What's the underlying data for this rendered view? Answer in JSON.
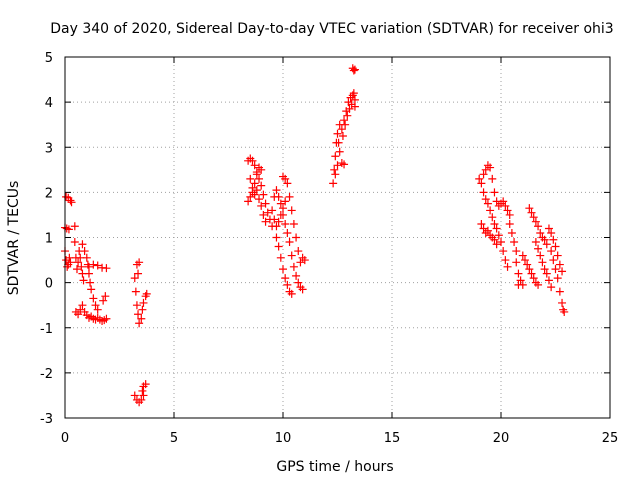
{
  "chart_data": {
    "type": "scatter",
    "title": "Day 340 of 2020, Sidereal Day-to-day VTEC variation (SDTVAR) for receiver ohi3",
    "xlabel": "GPS time / hours",
    "ylabel": "SDTVAR / TECUs",
    "xlim": [
      0,
      25
    ],
    "ylim": [
      -3,
      5
    ],
    "x_ticks": [
      "0",
      "5",
      "10",
      "15",
      "20",
      "25"
    ],
    "y_ticks": [
      "-3",
      "-2",
      "-1",
      "0",
      "1",
      "2",
      "3",
      "4",
      "5"
    ],
    "grid": true,
    "marker": "+",
    "marker_color": "#ff0000",
    "series": [
      {
        "name": "SDTVAR",
        "points": [
          [
            0.05,
            1.9
          ],
          [
            0.15,
            1.88
          ],
          [
            0.25,
            1.82
          ],
          [
            0.3,
            1.78
          ],
          [
            0.0,
            1.22
          ],
          [
            0.08,
            1.2
          ],
          [
            0.18,
            1.18
          ],
          [
            0.0,
            0.7
          ],
          [
            0.05,
            0.5
          ],
          [
            0.1,
            0.35
          ],
          [
            0.15,
            0.4
          ],
          [
            0.2,
            0.55
          ],
          [
            0.25,
            0.45
          ],
          [
            0.45,
            1.25
          ],
          [
            0.45,
            0.9
          ],
          [
            0.5,
            0.55
          ],
          [
            0.55,
            0.3
          ],
          [
            0.6,
            0.45
          ],
          [
            0.65,
            0.7
          ],
          [
            0.7,
            0.55
          ],
          [
            0.75,
            0.35
          ],
          [
            0.8,
            0.2
          ],
          [
            0.85,
            0.05
          ],
          [
            0.5,
            -0.65
          ],
          [
            0.6,
            -0.7
          ],
          [
            0.7,
            -0.6
          ],
          [
            0.8,
            -0.5
          ],
          [
            0.9,
            -0.65
          ],
          [
            1.0,
            -0.72
          ],
          [
            1.1,
            -0.78
          ],
          [
            1.2,
            -0.75
          ],
          [
            1.3,
            -0.8
          ],
          [
            1.4,
            -0.82
          ],
          [
            1.5,
            -0.78
          ],
          [
            1.6,
            -0.82
          ],
          [
            1.7,
            -0.85
          ],
          [
            1.8,
            -0.83
          ],
          [
            1.9,
            -0.8
          ],
          [
            0.8,
            0.85
          ],
          [
            0.9,
            0.7
          ],
          [
            1.0,
            0.55
          ],
          [
            1.05,
            0.4
          ],
          [
            1.1,
            0.2
          ],
          [
            1.15,
            0.0
          ],
          [
            1.2,
            -0.15
          ],
          [
            1.3,
            -0.35
          ],
          [
            1.4,
            -0.5
          ],
          [
            1.5,
            -0.6
          ],
          [
            1.1,
            0.35
          ],
          [
            1.3,
            0.4
          ],
          [
            1.5,
            0.38
          ],
          [
            1.7,
            0.33
          ],
          [
            1.9,
            0.32
          ],
          [
            1.75,
            -0.4
          ],
          [
            1.85,
            -0.3
          ],
          [
            3.2,
            -2.5
          ],
          [
            3.3,
            -2.6
          ],
          [
            3.4,
            -2.65
          ],
          [
            3.5,
            -2.6
          ],
          [
            3.6,
            -2.5
          ],
          [
            3.55,
            -2.4
          ],
          [
            3.6,
            -2.3
          ],
          [
            3.7,
            -2.25
          ],
          [
            3.2,
            0.1
          ],
          [
            3.25,
            -0.2
          ],
          [
            3.3,
            -0.5
          ],
          [
            3.35,
            -0.7
          ],
          [
            3.4,
            -0.9
          ],
          [
            3.3,
            0.4
          ],
          [
            3.4,
            0.45
          ],
          [
            3.35,
            0.2
          ],
          [
            3.5,
            -0.8
          ],
          [
            3.55,
            -0.6
          ],
          [
            3.6,
            -0.45
          ],
          [
            3.7,
            -0.3
          ],
          [
            3.75,
            -0.25
          ],
          [
            8.4,
            2.7
          ],
          [
            8.5,
            2.75
          ],
          [
            8.6,
            2.7
          ],
          [
            8.7,
            2.6
          ],
          [
            8.8,
            2.45
          ],
          [
            8.9,
            2.3
          ],
          [
            9.0,
            2.15
          ],
          [
            9.1,
            1.95
          ],
          [
            9.2,
            1.75
          ],
          [
            9.3,
            1.55
          ],
          [
            9.4,
            1.4
          ],
          [
            9.5,
            1.25
          ],
          [
            8.5,
            2.3
          ],
          [
            8.6,
            2.1
          ],
          [
            8.7,
            1.95
          ],
          [
            8.8,
            2.05
          ],
          [
            8.9,
            1.85
          ],
          [
            9.0,
            1.7
          ],
          [
            9.1,
            1.5
          ],
          [
            9.2,
            1.35
          ],
          [
            8.4,
            1.8
          ],
          [
            8.5,
            1.9
          ],
          [
            8.6,
            2.0
          ],
          [
            8.7,
            2.2
          ],
          [
            8.8,
            2.4
          ],
          [
            8.9,
            2.55
          ],
          [
            9.0,
            2.5
          ],
          [
            9.6,
            1.9
          ],
          [
            9.7,
            2.05
          ],
          [
            9.8,
            1.9
          ],
          [
            9.9,
            1.75
          ],
          [
            10.0,
            1.5
          ],
          [
            10.1,
            1.3
          ],
          [
            10.2,
            1.1
          ],
          [
            10.3,
            0.9
          ],
          [
            10.4,
            0.6
          ],
          [
            10.5,
            0.35
          ],
          [
            10.6,
            0.15
          ],
          [
            10.7,
            0.0
          ],
          [
            10.8,
            -0.1
          ],
          [
            10.9,
            -0.15
          ],
          [
            9.5,
            1.6
          ],
          [
            9.6,
            1.4
          ],
          [
            9.7,
            1.25
          ],
          [
            9.8,
            1.35
          ],
          [
            9.9,
            1.5
          ],
          [
            10.0,
            1.65
          ],
          [
            10.1,
            1.8
          ],
          [
            9.7,
            1.0
          ],
          [
            9.8,
            0.8
          ],
          [
            9.9,
            0.55
          ],
          [
            10.0,
            0.3
          ],
          [
            10.1,
            0.1
          ],
          [
            10.2,
            -0.05
          ],
          [
            10.3,
            -0.2
          ],
          [
            10.4,
            -0.25
          ],
          [
            10.0,
            2.35
          ],
          [
            10.1,
            2.3
          ],
          [
            10.2,
            2.2
          ],
          [
            10.3,
            1.9
          ],
          [
            10.4,
            1.6
          ],
          [
            10.5,
            1.3
          ],
          [
            10.6,
            1.0
          ],
          [
            10.7,
            0.7
          ],
          [
            10.8,
            0.45
          ],
          [
            10.9,
            0.55
          ],
          [
            11.0,
            0.5
          ],
          [
            12.3,
            2.2
          ],
          [
            12.35,
            2.5
          ],
          [
            12.4,
            2.8
          ],
          [
            12.45,
            3.1
          ],
          [
            12.5,
            3.3
          ],
          [
            12.55,
            3.1
          ],
          [
            12.6,
            2.9
          ],
          [
            12.5,
            2.6
          ],
          [
            12.4,
            2.4
          ],
          [
            12.6,
            3.5
          ],
          [
            12.7,
            3.4
          ],
          [
            12.8,
            3.6
          ],
          [
            12.9,
            3.8
          ],
          [
            13.0,
            4.0
          ],
          [
            13.1,
            4.1
          ],
          [
            13.2,
            4.15
          ],
          [
            13.3,
            4.05
          ],
          [
            12.75,
            3.25
          ],
          [
            12.85,
            3.5
          ],
          [
            12.95,
            3.7
          ],
          [
            13.05,
            3.85
          ],
          [
            13.15,
            3.95
          ],
          [
            13.25,
            4.2
          ],
          [
            13.3,
            3.9
          ],
          [
            12.7,
            2.65
          ],
          [
            12.8,
            2.62
          ],
          [
            13.2,
            4.75
          ],
          [
            13.3,
            4.72
          ],
          [
            13.25,
            4.7
          ],
          [
            19.0,
            2.3
          ],
          [
            19.1,
            2.2
          ],
          [
            19.2,
            2.0
          ],
          [
            19.3,
            1.85
          ],
          [
            19.4,
            1.75
          ],
          [
            19.5,
            1.6
          ],
          [
            19.6,
            1.45
          ],
          [
            19.7,
            1.3
          ],
          [
            19.8,
            1.2
          ],
          [
            19.9,
            1.05
          ],
          [
            20.0,
            0.9
          ],
          [
            20.1,
            0.7
          ],
          [
            20.2,
            0.5
          ],
          [
            20.3,
            0.35
          ],
          [
            19.1,
            1.3
          ],
          [
            19.2,
            1.2
          ],
          [
            19.3,
            1.1
          ],
          [
            19.4,
            1.15
          ],
          [
            19.5,
            1.05
          ],
          [
            19.6,
            1.0
          ],
          [
            19.7,
            0.95
          ],
          [
            19.8,
            0.85
          ],
          [
            19.2,
            2.4
          ],
          [
            19.3,
            2.5
          ],
          [
            19.4,
            2.6
          ],
          [
            19.5,
            2.55
          ],
          [
            19.6,
            2.3
          ],
          [
            19.7,
            2.0
          ],
          [
            19.8,
            1.8
          ],
          [
            19.9,
            1.7
          ],
          [
            20.0,
            1.75
          ],
          [
            20.1,
            1.8
          ],
          [
            20.2,
            1.7
          ],
          [
            20.3,
            1.6
          ],
          [
            20.4,
            1.5
          ],
          [
            20.4,
            1.3
          ],
          [
            20.5,
            1.1
          ],
          [
            20.6,
            0.9
          ],
          [
            20.7,
            0.7
          ],
          [
            20.7,
            0.45
          ],
          [
            20.8,
            0.2
          ],
          [
            20.9,
            0.05
          ],
          [
            21.0,
            -0.05
          ],
          [
            20.8,
            -0.05
          ],
          [
            21.0,
            0.6
          ],
          [
            21.1,
            0.5
          ],
          [
            21.2,
            0.4
          ],
          [
            21.3,
            0.3
          ],
          [
            21.4,
            0.2
          ],
          [
            21.5,
            0.1
          ],
          [
            21.6,
            0.0
          ],
          [
            21.7,
            -0.05
          ],
          [
            21.3,
            1.65
          ],
          [
            21.4,
            1.55
          ],
          [
            21.5,
            1.45
          ],
          [
            21.6,
            1.35
          ],
          [
            21.7,
            1.25
          ],
          [
            21.8,
            1.1
          ],
          [
            21.9,
            1.0
          ],
          [
            22.0,
            0.95
          ],
          [
            22.1,
            0.85
          ],
          [
            22.2,
            1.2
          ],
          [
            22.3,
            1.1
          ],
          [
            22.4,
            0.95
          ],
          [
            22.5,
            0.8
          ],
          [
            22.6,
            0.6
          ],
          [
            22.7,
            0.4
          ],
          [
            22.8,
            0.25
          ],
          [
            21.6,
            0.9
          ],
          [
            21.7,
            0.75
          ],
          [
            21.8,
            0.6
          ],
          [
            21.9,
            0.45
          ],
          [
            22.0,
            0.3
          ],
          [
            22.1,
            0.2
          ],
          [
            22.2,
            0.05
          ],
          [
            22.3,
            -0.1
          ],
          [
            22.3,
            0.7
          ],
          [
            22.4,
            0.5
          ],
          [
            22.5,
            0.3
          ],
          [
            22.6,
            0.1
          ],
          [
            22.7,
            -0.2
          ],
          [
            22.8,
            -0.45
          ],
          [
            22.85,
            -0.6
          ],
          [
            22.9,
            -0.65
          ]
        ]
      }
    ]
  }
}
